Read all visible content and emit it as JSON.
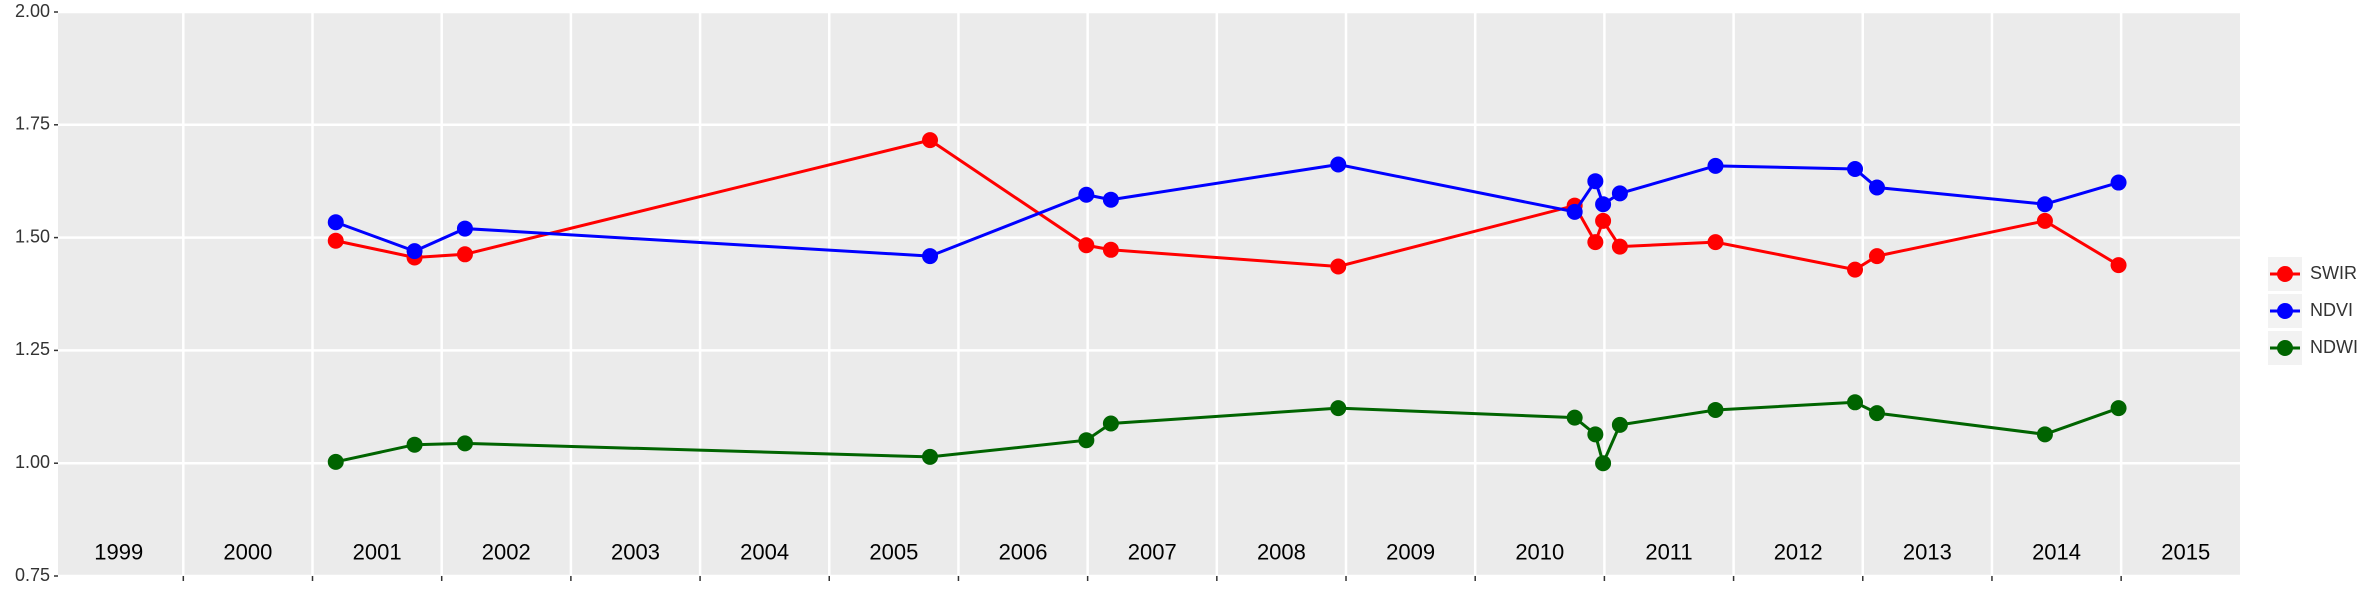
{
  "chart_data": {
    "type": "line",
    "x": [
      2001.18,
      2001.79,
      2002.18,
      2005.78,
      2006.99,
      2007.18,
      2008.94,
      2010.77,
      2010.93,
      2010.99,
      2011.12,
      2011.86,
      2012.94,
      2013.11,
      2014.41,
      2014.98
    ],
    "series": [
      {
        "name": "SWIR",
        "color": "#ff0000",
        "values": [
          1.493,
          1.456,
          1.463,
          1.716,
          1.483,
          1.473,
          1.436,
          1.571,
          1.49,
          1.537,
          1.48,
          1.49,
          1.429,
          1.459,
          1.537,
          1.439
        ]
      },
      {
        "name": "NDVI",
        "color": "#0000ff",
        "values": [
          1.534,
          1.47,
          1.52,
          1.459,
          1.595,
          1.584,
          1.662,
          1.557,
          1.625,
          1.574,
          1.598,
          1.659,
          1.652,
          1.611,
          1.574,
          1.622
        ]
      },
      {
        "name": "NDWI",
        "color": "#006400",
        "values": [
          1.003,
          1.041,
          1.044,
          1.014,
          1.051,
          1.088,
          1.122,
          1.101,
          1.064,
          1.0,
          1.085,
          1.118,
          1.135,
          1.111,
          1.064,
          1.122
        ]
      }
    ],
    "xlim": [
      1999.03,
      2015.92
    ],
    "xticks": [
      2000,
      2001,
      2002,
      2003,
      2004,
      2005,
      2006,
      2007,
      2008,
      2009,
      2010,
      2011,
      2012,
      2013,
      2014,
      2015
    ],
    "ylim": [
      0.75,
      2.0
    ],
    "yticks": [
      {
        "value": 0.75,
        "label": "0.75"
      },
      {
        "value": 1.0,
        "label": "1.00"
      },
      {
        "value": 1.25,
        "label": "1.25"
      },
      {
        "value": 1.5,
        "label": "1.50"
      },
      {
        "value": 1.75,
        "label": "1.75"
      },
      {
        "value": 2.0,
        "label": "2.00"
      }
    ],
    "annotations": [
      {
        "x": 1999.5,
        "y": 0.8,
        "text": "1999"
      },
      {
        "x": 2000.5,
        "y": 0.8,
        "text": "2000"
      },
      {
        "x": 2001.5,
        "y": 0.8,
        "text": "2001"
      },
      {
        "x": 2002.5,
        "y": 0.8,
        "text": "2002"
      },
      {
        "x": 2003.5,
        "y": 0.8,
        "text": "2003"
      },
      {
        "x": 2004.5,
        "y": 0.8,
        "text": "2004"
      },
      {
        "x": 2005.5,
        "y": 0.8,
        "text": "2005"
      },
      {
        "x": 2006.5,
        "y": 0.8,
        "text": "2006"
      },
      {
        "x": 2007.5,
        "y": 0.8,
        "text": "2007"
      },
      {
        "x": 2008.5,
        "y": 0.8,
        "text": "2008"
      },
      {
        "x": 2009.5,
        "y": 0.8,
        "text": "2009"
      },
      {
        "x": 2010.5,
        "y": 0.8,
        "text": "2010"
      },
      {
        "x": 2011.5,
        "y": 0.8,
        "text": "2011"
      },
      {
        "x": 2012.5,
        "y": 0.8,
        "text": "2012"
      },
      {
        "x": 2013.5,
        "y": 0.8,
        "text": "2013"
      },
      {
        "x": 2014.5,
        "y": 0.8,
        "text": "2014"
      },
      {
        "x": 2015.5,
        "y": 0.8,
        "text": "2015"
      }
    ],
    "grid": true,
    "legend": "right"
  }
}
